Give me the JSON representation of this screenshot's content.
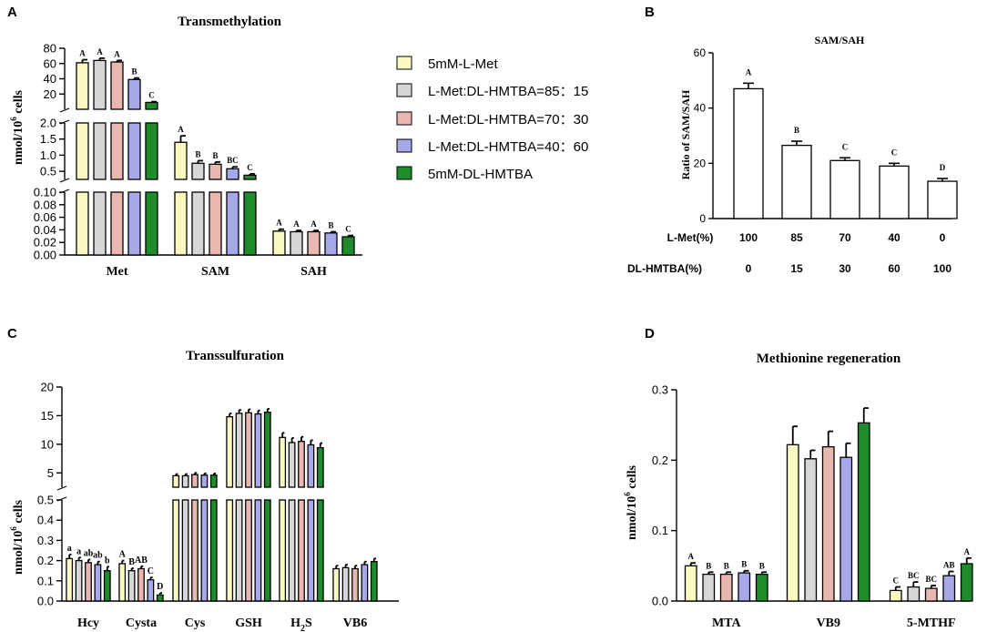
{
  "colors": [
    "#fafac0",
    "#d6d6d6",
    "#e8b8b0",
    "#a6a8e8",
    "#1e8c2a"
  ],
  "legend": {
    "items": [
      "5mM-L-Met",
      "L-Met:DL-HMTBA=85：15",
      "L-Met:DL-HMTBA=70：30",
      "L-Met:DL-HMTBA=40：60",
      "5mM-DL-HMTBA"
    ]
  },
  "chart_data": [
    {
      "panel": "A",
      "type": "bar",
      "title": "Transmethylation",
      "ylabel": "nmol/10^6 cells",
      "ylabel_main": "nmol/10",
      "ylabel_sup": "6",
      "ylabel_rest": " cells",
      "categories": [
        "Met",
        "SAM",
        "SAH"
      ],
      "series_names": [
        "5mM-L-Met",
        "L-Met:DL-HMTBA=85：15",
        "L-Met:DL-HMTBA=70：30",
        "L-Met:DL-HMTBA=40：60",
        "5mM-DL-HMTBA"
      ],
      "values": [
        [
          61,
          64,
          62,
          39,
          9
        ],
        [
          1.4,
          0.75,
          0.72,
          0.58,
          0.38
        ],
        [
          0.038,
          0.037,
          0.037,
          0.035,
          0.029
        ]
      ],
      "errors": [
        [
          4,
          3,
          2,
          2,
          1
        ],
        [
          0.2,
          0.08,
          0.07,
          0.06,
          0.04
        ],
        [
          0.003,
          0.002,
          0.002,
          0.002,
          0.002
        ]
      ],
      "labels": [
        [
          "A",
          "A",
          "A",
          "B",
          "C"
        ],
        [
          "A",
          "B",
          "B",
          "BC",
          "C"
        ],
        [
          "A",
          "A",
          "A",
          "B",
          "C"
        ]
      ],
      "segments": [
        {
          "range": [
            0,
            0.1
          ],
          "ticks": [
            0.0,
            0.02,
            0.04,
            0.06,
            0.08,
            0.1
          ],
          "tick_labels": [
            "0.00",
            "0.02",
            "0.04",
            "0.06",
            "0.08",
            "0.10"
          ]
        },
        {
          "range": [
            0.25,
            2.0
          ],
          "ticks": [
            0.5,
            1.0,
            1.5,
            2.0
          ],
          "tick_labels": [
            "0.5",
            "1.0",
            "1.5",
            "2.0"
          ]
        },
        {
          "range": [
            0,
            80
          ],
          "ticks": [
            20,
            40,
            60,
            80
          ],
          "tick_labels": [
            "20",
            "40",
            "60",
            "80"
          ]
        }
      ]
    },
    {
      "panel": "B",
      "type": "bar",
      "title": "SAM/SAH",
      "ylabel": "Ratio of SAM/SAH",
      "ylim": [
        0,
        60
      ],
      "yticks": [
        0,
        20,
        40,
        60
      ],
      "ytick_labels": [
        "0",
        "20",
        "40",
        "60"
      ],
      "values": [
        47,
        26.5,
        21,
        19,
        13.5
      ],
      "errors": [
        2,
        1.5,
        1,
        1,
        1
      ],
      "labels": [
        "A",
        "B",
        "C",
        "C",
        "D"
      ],
      "row1_label": "L-Met(%)",
      "row1": [
        "100",
        "85",
        "70",
        "40",
        "0"
      ],
      "row2_label": "DL-HMTBA(%)",
      "row2": [
        "0",
        "15",
        "30",
        "60",
        "100"
      ]
    },
    {
      "panel": "C",
      "type": "bar",
      "title": "Transsulfuration",
      "ylabel_main": "nmol/10",
      "ylabel_sup": "6",
      "ylabel_rest": " cells",
      "categories": [
        "Hcy",
        "Cysta",
        "Cys",
        "GSH",
        "H2S",
        "VB6"
      ],
      "cat_display": [
        "Hcy",
        "Cysta",
        "Cys",
        "GSH",
        "H",
        "VB6"
      ],
      "cat_sub": [
        "",
        "",
        "",
        "",
        "2",
        ""
      ],
      "cat_after": [
        "",
        "",
        "",
        "",
        "S",
        ""
      ],
      "values": [
        [
          0.21,
          0.2,
          0.19,
          0.18,
          0.15
        ],
        [
          0.185,
          0.15,
          0.16,
          0.105,
          0.03
        ],
        [
          4.5,
          4.5,
          4.7,
          4.6,
          4.6
        ],
        [
          14.8,
          15.4,
          15.5,
          15.3,
          15.6
        ],
        [
          11.2,
          10.3,
          10.5,
          9.9,
          9.4
        ],
        [
          0.16,
          0.165,
          0.16,
          0.18,
          0.195
        ]
      ],
      "errors": [
        [
          0.02,
          0.015,
          0.015,
          0.015,
          0.02
        ],
        [
          0.015,
          0.012,
          0.012,
          0.012,
          0.01
        ],
        [
          0.3,
          0.3,
          0.3,
          0.3,
          0.3
        ],
        [
          0.6,
          0.6,
          0.6,
          0.6,
          0.6
        ],
        [
          0.8,
          0.8,
          0.8,
          0.8,
          0.8
        ],
        [
          0.015,
          0.015,
          0.015,
          0.015,
          0.015
        ]
      ],
      "labels": [
        [
          "a",
          "a",
          "ab",
          "ab",
          "b"
        ],
        [
          "A",
          "B",
          "AB",
          "C",
          "D"
        ],
        [
          "",
          "",
          "",
          "",
          ""
        ],
        [
          "",
          "",
          "",
          "",
          ""
        ],
        [
          "",
          "",
          "",
          "",
          ""
        ],
        [
          "",
          "",
          "",
          "",
          ""
        ]
      ],
      "segments": [
        {
          "range": [
            0,
            0.5
          ],
          "ticks": [
            0.0,
            0.1,
            0.2,
            0.3,
            0.4,
            0.5
          ],
          "tick_labels": [
            "0.0",
            "0.1",
            "0.2",
            "0.3",
            "0.4",
            "0.5"
          ]
        },
        {
          "range": [
            2.5,
            20
          ],
          "ticks": [
            5,
            10,
            15,
            20
          ],
          "tick_labels": [
            "5",
            "10",
            "15",
            "20"
          ]
        }
      ]
    },
    {
      "panel": "D",
      "type": "bar",
      "title": "Methionine regeneration",
      "ylabel_main": "nmol/10",
      "ylabel_sup": "6",
      "ylabel_rest": " cells",
      "categories": [
        "MTA",
        "VB9",
        "5-MTHF"
      ],
      "ylim": [
        0,
        0.3
      ],
      "yticks": [
        0.0,
        0.1,
        0.2,
        0.3
      ],
      "ytick_labels": [
        "0.0",
        "0.1",
        "0.2",
        "0.3"
      ],
      "values": [
        [
          0.05,
          0.038,
          0.038,
          0.04,
          0.038
        ],
        [
          0.222,
          0.202,
          0.219,
          0.204,
          0.253
        ],
        [
          0.015,
          0.02,
          0.018,
          0.036,
          0.053
        ]
      ],
      "errors": [
        [
          0.004,
          0.003,
          0.003,
          0.003,
          0.003
        ],
        [
          0.026,
          0.012,
          0.022,
          0.02,
          0.021
        ],
        [
          0.005,
          0.007,
          0.004,
          0.006,
          0.008
        ]
      ],
      "labels": [
        [
          "A",
          "B",
          "B",
          "B",
          "B"
        ],
        [
          "",
          "",
          "",
          "",
          ""
        ],
        [
          "C",
          "BC",
          "BC",
          "AB",
          "A"
        ]
      ]
    }
  ]
}
